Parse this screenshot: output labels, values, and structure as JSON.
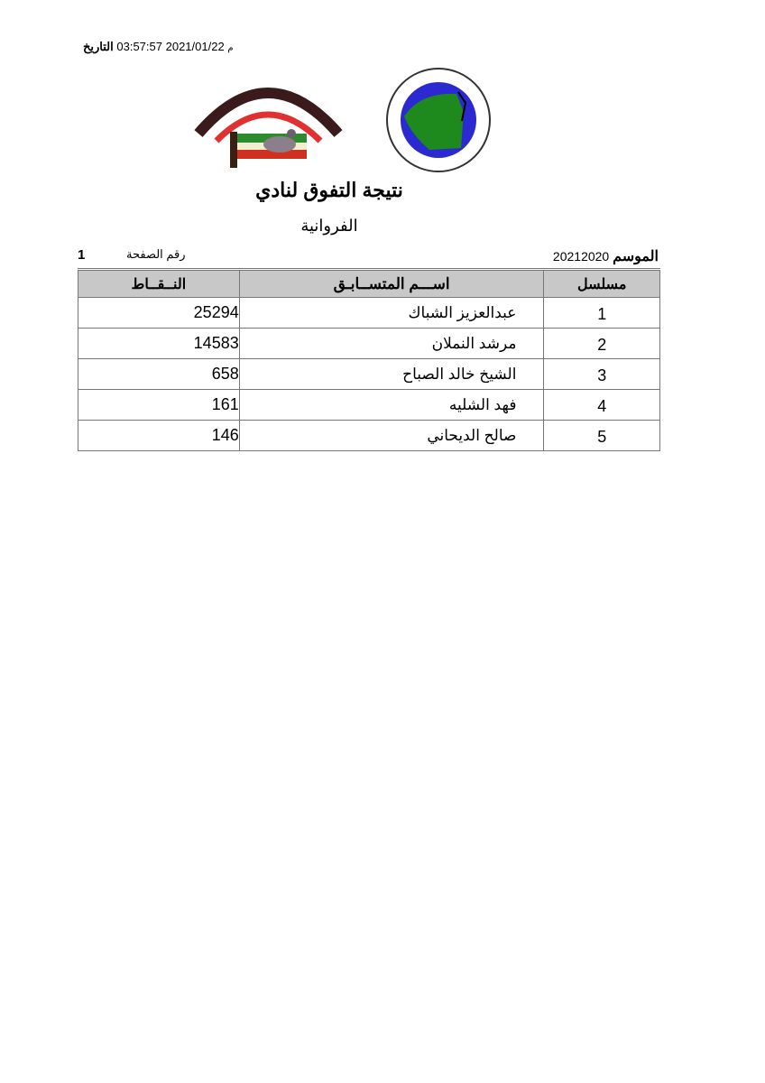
{
  "header": {
    "date_label": "التاريخ",
    "date_value": "2021/01/22 03:57:57",
    "date_suffix": "م"
  },
  "logos": {
    "club": "النادي الكويتي لسباق الحمام الزاجل - Kuwait Racing Pigeon Club",
    "federation": "الاتحاد الكويتي لسباق حمام الزاجل - KUWAIT FEDRATION FOR RACING PIGEON"
  },
  "title": "نتيجة التفوق لنادي",
  "subtitle": "الفروانية",
  "season": {
    "label": "الموسم",
    "value": "20212020"
  },
  "page": {
    "label": "رقم الصفحة",
    "value": "1"
  },
  "colors": {
    "header_bg": "#c8c8c8",
    "border": "#777777"
  },
  "table": {
    "headers": {
      "serial": "مسلسل",
      "name": "اســـم المتســابـق",
      "points": "النــقــاط"
    },
    "rows": [
      {
        "serial": "1",
        "name": "عبدالعزيز الشباك",
        "points": "25294"
      },
      {
        "serial": "2",
        "name": "مرشد النملان",
        "points": "14583"
      },
      {
        "serial": "3",
        "name": "الشيخ خالد الصباح",
        "points": "658"
      },
      {
        "serial": "4",
        "name": "فهد الشليه",
        "points": "161"
      },
      {
        "serial": "5",
        "name": "صالح الديحاني",
        "points": "146"
      }
    ]
  }
}
